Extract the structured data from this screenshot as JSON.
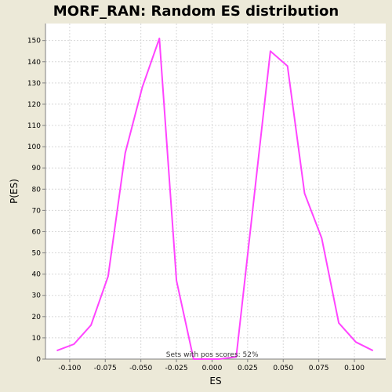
{
  "chart_data": {
    "type": "line",
    "title": "MORF_RAN: Random ES distribution",
    "xlabel": "ES",
    "ylabel": "P(ES)",
    "xlim": [
      -0.117,
      0.122
    ],
    "ylim": [
      0,
      158
    ],
    "xticks": [
      -0.1,
      -0.075,
      -0.05,
      -0.025,
      0.0,
      0.025,
      0.05,
      0.075,
      0.1
    ],
    "xtick_labels": [
      "-0.100",
      "-0.075",
      "-0.050",
      "-0.025",
      "0.000",
      "0.025",
      "0.050",
      "0.075",
      "0.100"
    ],
    "yticks": [
      0,
      10,
      20,
      30,
      40,
      50,
      60,
      70,
      80,
      90,
      100,
      110,
      120,
      130,
      140,
      150
    ],
    "ytick_labels": [
      "0",
      "10",
      "20",
      "30",
      "40",
      "50",
      "60",
      "70",
      "80",
      "90",
      "100",
      "110",
      "120",
      "130",
      "140",
      "150"
    ],
    "grid": true,
    "series": [
      {
        "color": "#ff44ff",
        "x": [
          -0.109,
          -0.097,
          -0.085,
          -0.073,
          -0.061,
          -0.049,
          -0.037,
          -0.025,
          -0.013,
          0.005,
          0.017,
          0.029,
          0.041,
          0.053,
          0.065,
          0.077,
          0.089,
          0.101,
          0.113
        ],
        "y": [
          4,
          7,
          16,
          39,
          97,
          128,
          151,
          37,
          0,
          0,
          1,
          73,
          145,
          138,
          78,
          57,
          17,
          8,
          4
        ]
      }
    ],
    "annotation": "Sets with pos scores: 52%"
  }
}
